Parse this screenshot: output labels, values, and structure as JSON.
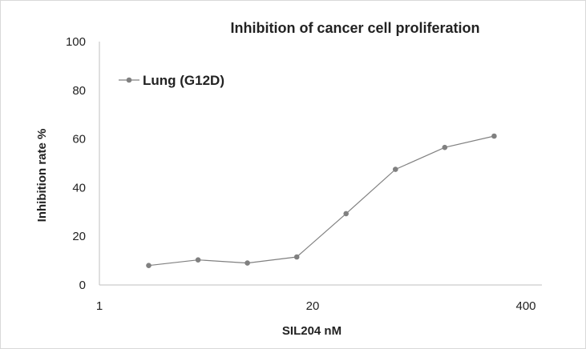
{
  "chart_data": {
    "type": "line",
    "title": "Inhibition of cancer cell proliferation",
    "xlabel": "SIL204 nM",
    "ylabel": "Inhibition rate %",
    "xscale": "log",
    "xlim": [
      1,
      400
    ],
    "ylim": [
      0,
      100
    ],
    "x_ticks": [
      "1",
      "20",
      "400"
    ],
    "y_ticks": [
      "0",
      "20",
      "40",
      "60",
      "80",
      "100"
    ],
    "grid": false,
    "legend_position": "top-left",
    "series": [
      {
        "name": "Lung (G12D)",
        "color": "#808080",
        "x": [
          2,
          4,
          8,
          16,
          32,
          64,
          128,
          256
        ],
        "y": [
          8,
          10.3,
          9,
          11.5,
          29.3,
          47.5,
          56.5,
          61.2
        ]
      }
    ]
  }
}
